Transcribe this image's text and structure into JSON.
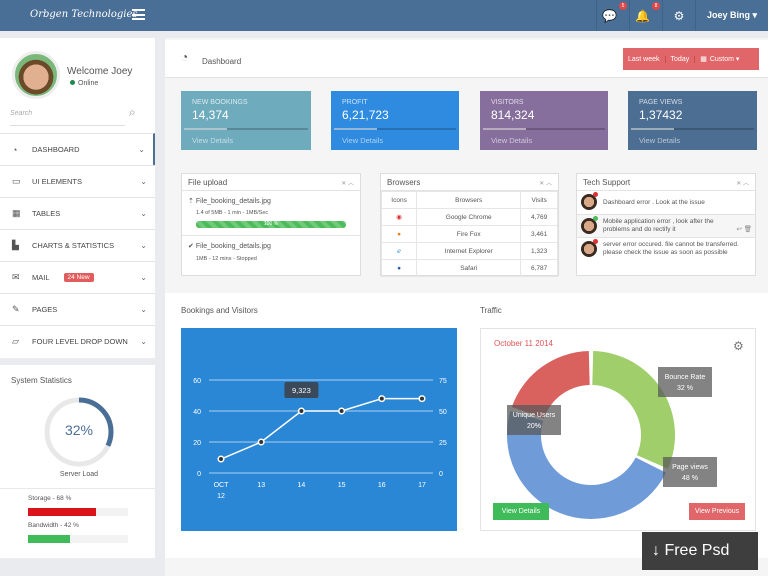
{
  "header": {
    "brand": "Orbgen Technologies",
    "messages_count": "5",
    "notifications_count": "8",
    "user": "Joey Bing ▾"
  },
  "sidebar": {
    "welcome": "Welcome Joey",
    "status": "Online",
    "search_placeholder": "Search",
    "items": [
      {
        "label": "DASHBOARD",
        "icon": "◔"
      },
      {
        "label": "UI ELEMENTS",
        "icon": "▭"
      },
      {
        "label": "TABLES",
        "icon": "▦"
      },
      {
        "label": "CHARTS & STATISTICS",
        "icon": "▙"
      },
      {
        "label": "MAIL",
        "icon": "✉",
        "badge": "24 New"
      },
      {
        "label": "PAGES",
        "icon": "✎"
      },
      {
        "label": "FOUR LEVEL DROP DOWN",
        "icon": "▱"
      }
    ]
  },
  "system_stats": {
    "title": "System Statistics",
    "server_load": "32%",
    "server_load_value": 32,
    "server_load_label": "Server Load",
    "storage_label": "Storage - 68 %",
    "storage_value": 68,
    "bandwidth_label": "Bandwidth - 42 %",
    "bandwidth_value": 42,
    "colors": {
      "storage": "#d9141b",
      "bandwidth": "#3fbb5a"
    }
  },
  "page": {
    "title": "Dashboard",
    "filters": [
      "Last week",
      "Today",
      "Custom ▾"
    ]
  },
  "cards": [
    {
      "label": "NEW BOOKINGS",
      "value": "14,374",
      "link": "View Details",
      "color": "#6eabbd"
    },
    {
      "label": "PROFIT",
      "value": "6,21,723",
      "link": "View Details",
      "color": "#2f8be0"
    },
    {
      "label": "VISITORS",
      "value": "814,324",
      "link": "View Details",
      "color": "#876f9d"
    },
    {
      "label": "PAGE VIEWS",
      "value": "1,37432",
      "link": "View Details",
      "color": "#4d6e93"
    }
  ],
  "file_upload": {
    "title": "File upload",
    "files": [
      {
        "name": "File_booking_details.jpg",
        "meta": "1.4 of 5MB - 1 min - 1MB/Sec",
        "progress": "100 %"
      },
      {
        "name": "File_booking_details.jpg",
        "meta": "1MB - 12 mins - Stopped"
      }
    ]
  },
  "browsers": {
    "title": "Browsers",
    "headers": [
      "Icons",
      "Browsers",
      "Visits"
    ],
    "rows": [
      {
        "name": "Google Chrome",
        "visits": "4,769"
      },
      {
        "name": "Fire Fox",
        "visits": "3,461"
      },
      {
        "name": "Internet Explorer",
        "visits": "1,323"
      },
      {
        "name": "Safari",
        "visits": "6,787"
      }
    ]
  },
  "tech_support": {
    "title": "Tech Support",
    "messages": [
      "Dashboard error . Look at the issue",
      "Mobile application error , look after the problems and do rectify it",
      "server error occured. file cannot be transferred. please check the issue as soon as possible"
    ]
  },
  "bookings_title": "Bookings and Visitors",
  "traffic_title": "Traffic",
  "chart_data": [
    {
      "type": "line",
      "title": "Bookings and Visitors",
      "categories": [
        "OCT 12",
        "13",
        "14",
        "15",
        "16",
        "17"
      ],
      "values": [
        9,
        20,
        40,
        40,
        48,
        48
      ],
      "ylim": [
        0,
        60
      ],
      "yticks": [
        0,
        20,
        40,
        60
      ],
      "y2lim": [
        0,
        75
      ],
      "y2ticks": [
        0,
        25,
        50,
        75
      ],
      "tooltip": {
        "index": 2,
        "label": "9,323"
      }
    },
    {
      "type": "pie",
      "title": "Traffic",
      "date": "October 11 2014",
      "slices": [
        {
          "label": "Bounce Rate",
          "value": 32,
          "text": "32 %",
          "color": "#9fce6a"
        },
        {
          "label": "Page views",
          "value": 48,
          "text": "48 %",
          "color": "#6f9bd8"
        },
        {
          "label": "Unique Users",
          "value": 20,
          "text": "20%",
          "color": "#d9625f"
        }
      ],
      "buttons": [
        "View Details",
        "View Previous"
      ]
    }
  ],
  "watermark": "Free Psd"
}
